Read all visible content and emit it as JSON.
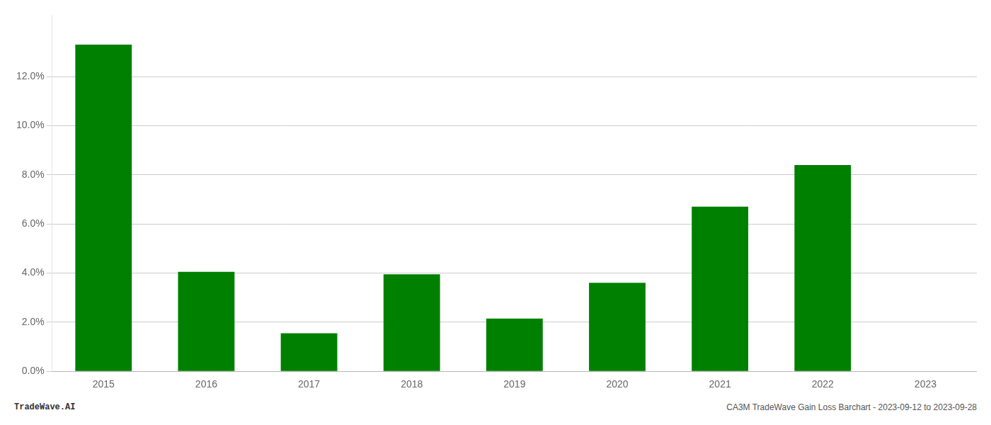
{
  "chart_data": {
    "type": "bar",
    "categories": [
      "2015",
      "2016",
      "2017",
      "2018",
      "2019",
      "2020",
      "2021",
      "2022",
      "2023"
    ],
    "values": [
      0.133,
      0.0405,
      0.0155,
      0.0395,
      0.0215,
      0.036,
      0.067,
      0.084,
      0.0
    ],
    "color": "#008000",
    "ylim": [
      0.0,
      0.145
    ],
    "yticks": [
      {
        "value": 0.0,
        "label": "0.0%"
      },
      {
        "value": 0.02,
        "label": "2.0%"
      },
      {
        "value": 0.04,
        "label": "4.0%"
      },
      {
        "value": 0.06,
        "label": "6.0%"
      },
      {
        "value": 0.08,
        "label": "8.0%"
      },
      {
        "value": 0.1,
        "label": "10.0%"
      },
      {
        "value": 0.12,
        "label": "12.0%"
      }
    ],
    "grid": true,
    "annotations": [
      "TradeWave.AI",
      "CA3M TradeWave Gain Loss Barchart - 2023-09-12 to 2023-09-28"
    ]
  }
}
